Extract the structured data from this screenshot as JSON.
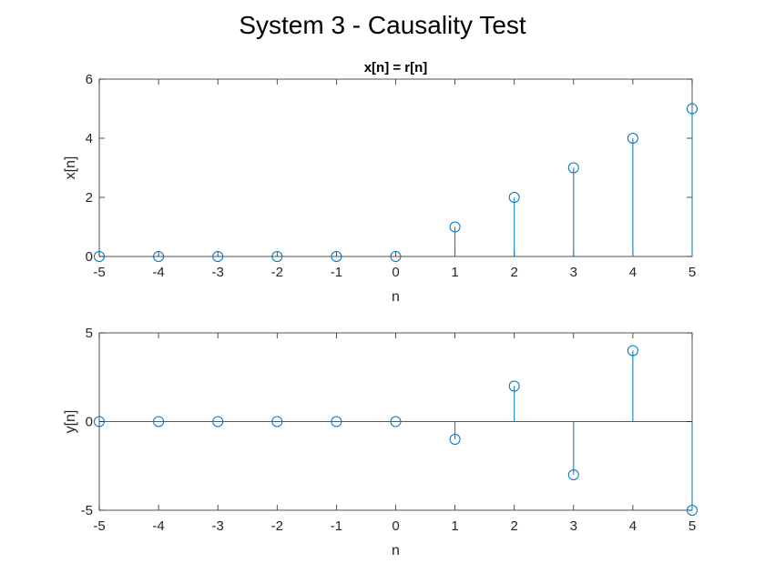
{
  "figure": {
    "title": "System 3 - Causality Test"
  },
  "colors": {
    "stem": "#0072BD",
    "axis": "#262626",
    "background": "#ffffff"
  },
  "chart_data": [
    {
      "type": "stem",
      "title": "x[n] = r[n]",
      "xlabel": "n",
      "ylabel": "x[n]",
      "xlim": [
        -5,
        5
      ],
      "ylim": [
        0,
        6
      ],
      "xticks": [
        -5,
        -4,
        -3,
        -2,
        -1,
        0,
        1,
        2,
        3,
        4,
        5
      ],
      "yticks": [
        0,
        2,
        4,
        6
      ],
      "grid": false,
      "x": [
        -5,
        -4,
        -3,
        -2,
        -1,
        0,
        1,
        2,
        3,
        4,
        5
      ],
      "values": [
        0,
        0,
        0,
        0,
        0,
        0,
        1,
        2,
        3,
        4,
        5
      ]
    },
    {
      "type": "stem",
      "title": "",
      "xlabel": "n",
      "ylabel": "y[n]",
      "xlim": [
        -5,
        5
      ],
      "ylim": [
        -5,
        5
      ],
      "xticks": [
        -5,
        -4,
        -3,
        -2,
        -1,
        0,
        1,
        2,
        3,
        4,
        5
      ],
      "yticks": [
        -5,
        0,
        5
      ],
      "grid": false,
      "x": [
        -5,
        -4,
        -3,
        -2,
        -1,
        0,
        1,
        2,
        3,
        4,
        5
      ],
      "values": [
        0,
        0,
        0,
        0,
        0,
        0,
        -1,
        2,
        -3,
        4,
        -5
      ]
    }
  ]
}
